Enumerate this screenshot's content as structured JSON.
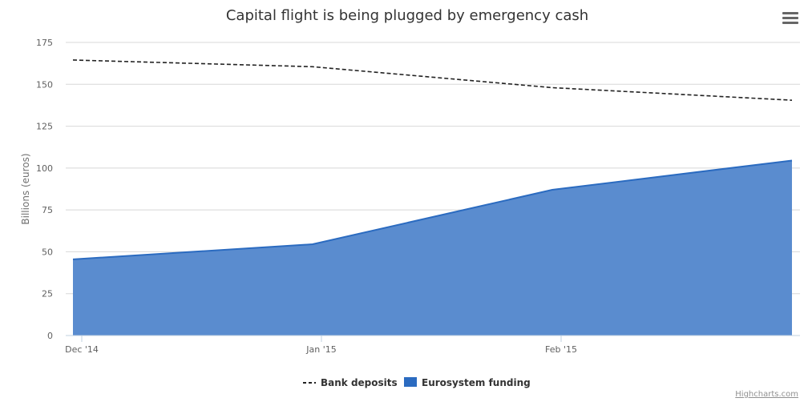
{
  "chart_data": {
    "type": "area",
    "title": "Capital flight is being plugged by emergency cash",
    "ylabel": "Billions (euros)",
    "ylim": [
      0,
      175
    ],
    "yticks": [
      0,
      25,
      50,
      75,
      100,
      125,
      150,
      175
    ],
    "xticks": [
      "Dec '14",
      "Jan '15",
      "Feb '15"
    ],
    "grid": true,
    "legend_position": "bottom-center",
    "series": [
      {
        "name": "Bank deposits",
        "type": "line",
        "dash": "dashed",
        "color": "#222222",
        "values": [
          164.5,
          160.5,
          148,
          140.5
        ]
      },
      {
        "name": "Eurosystem funding",
        "type": "area",
        "color": "#2b6bc0",
        "fill": "#5a8ccf",
        "values": [
          45.5,
          54.5,
          87,
          104.5
        ]
      }
    ]
  },
  "credits": "Highcharts.com"
}
